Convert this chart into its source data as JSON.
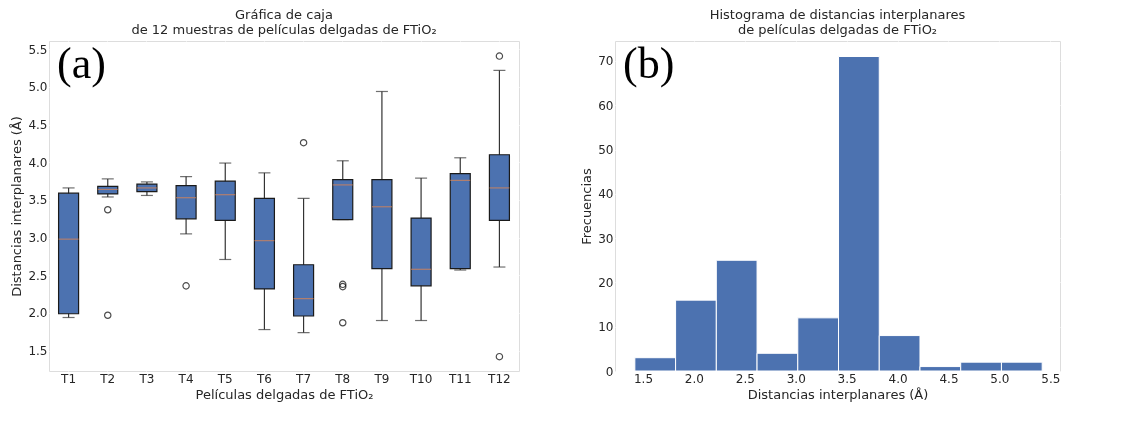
{
  "chart_data": [
    {
      "type": "box",
      "title": "Gráfica de caja\nde 12 muestras de películas delgadas de FTiO₂",
      "xlabel": "Películas delgadas de FTiO₂",
      "ylabel": "Distancias interplanares (Å)",
      "annotations": [
        "(a)"
      ],
      "color": "#4c72b0",
      "grid": true,
      "categories": [
        "T1",
        "T2",
        "T3",
        "T4",
        "T5",
        "T6",
        "T7",
        "T8",
        "T9",
        "T10",
        "T11",
        "T12"
      ],
      "ylim": [
        1.23,
        5.61
      ],
      "yticks": [
        1.5,
        {
          "value": 2,
          "label": "2.0"
        },
        2.5,
        {
          "value": 3,
          "label": "3.0"
        },
        3.5,
        {
          "value": 4,
          "label": "4.0"
        },
        4.5,
        {
          "value": 5,
          "label": "5.0"
        },
        5.5
      ],
      "boxes": [
        {
          "low": 1.94,
          "q1": 1.99,
          "median": 2.98,
          "q3": 3.59,
          "high": 3.66
        },
        {
          "low": 3.54,
          "q1": 3.58,
          "median": 3.64,
          "q3": 3.68,
          "high": 3.78,
          "outliers": [
            3.37,
            1.97
          ]
        },
        {
          "low": 3.56,
          "q1": 3.61,
          "median": 3.66,
          "q3": 3.71,
          "high": 3.74
        },
        {
          "low": 3.05,
          "q1": 3.25,
          "median": 3.53,
          "q3": 3.69,
          "high": 3.81,
          "outliers": [
            2.36
          ]
        },
        {
          "low": 2.71,
          "q1": 3.23,
          "median": 3.57,
          "q3": 3.75,
          "high": 3.99
        },
        {
          "low": 1.78,
          "q1": 2.32,
          "median": 2.96,
          "q3": 3.52,
          "high": 3.86
        },
        {
          "low": 1.74,
          "q1": 1.96,
          "median": 2.19,
          "q3": 2.64,
          "high": 3.52,
          "outliers": [
            4.26
          ]
        },
        {
          "low": 3.24,
          "q1": 3.24,
          "median": 3.7,
          "q3": 3.77,
          "high": 4.02,
          "outliers": [
            2.38,
            2.35,
            1.87
          ]
        },
        {
          "low": 1.9,
          "q1": 2.59,
          "median": 3.41,
          "q3": 3.77,
          "high": 4.94
        },
        {
          "low": 1.9,
          "q1": 2.36,
          "median": 2.58,
          "q3": 3.26,
          "high": 3.79
        },
        {
          "low": 2.57,
          "q1": 2.59,
          "median": 3.76,
          "q3": 3.85,
          "high": 4.06
        },
        {
          "low": 2.61,
          "q1": 3.23,
          "median": 3.66,
          "q3": 4.1,
          "high": 5.22,
          "outliers": [
            5.41,
            1.42
          ]
        }
      ]
    },
    {
      "type": "histogram",
      "title": "Histograma de distancias interplanares\nde películas delgadas de FTiO₂",
      "xlabel": "Distancias interplanares (Å)",
      "ylabel": "Frecuencias",
      "annotations": [
        "(b)"
      ],
      "color": "#4c72b0",
      "grid": true,
      "bins": [
        1.42,
        1.82,
        2.22,
        2.62,
        3.02,
        3.42,
        3.82,
        4.22,
        4.62,
        5.02,
        5.42
      ],
      "values": [
        3,
        16,
        25,
        4,
        12,
        71,
        8,
        1,
        2,
        2
      ],
      "xlim": [
        1.225,
        5.595
      ],
      "xticks": [
        1.5,
        {
          "value": 2,
          "label": "2.0"
        },
        2.5,
        {
          "value": 3,
          "label": "3.0"
        },
        3.5,
        {
          "value": 4,
          "label": "4.0"
        },
        4.5,
        {
          "value": 5,
          "label": "5.0"
        },
        5.5
      ],
      "ylim": [
        0,
        74.5
      ],
      "yticks": [
        0,
        10,
        20,
        30,
        40,
        50,
        60,
        70
      ]
    }
  ]
}
